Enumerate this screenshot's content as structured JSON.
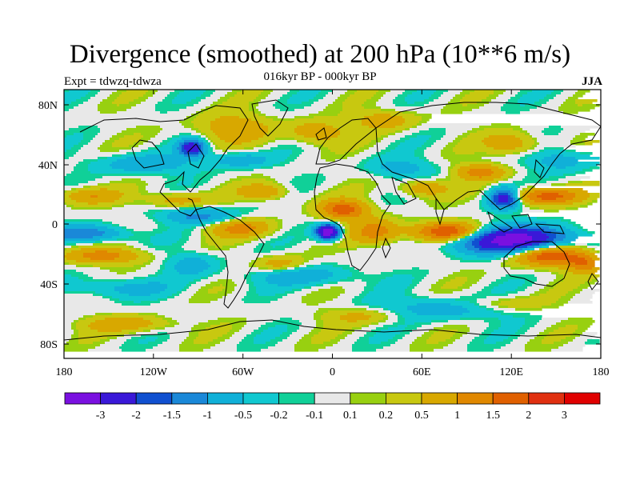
{
  "title": "Divergence (smoothed) at 200 hPa (10**6 m/s)",
  "subtitle": "016kyr BP - 000kyr BP",
  "left_label": "Expt = tdwzq-tdwza",
  "right_label": "JJA",
  "lon_ticks": [
    "180",
    "120W",
    "60W",
    "0",
    "60E",
    "120E",
    "180"
  ],
  "lat_ticks": [
    "80N",
    "40N",
    "0",
    "40S",
    "80S"
  ],
  "colorbar": {
    "colors": [
      "#7a10e0",
      "#3a18d8",
      "#1050d0",
      "#1a88d8",
      "#10b0d8",
      "#10c8d0",
      "#10d098",
      "#e8e8e8",
      "#98d010",
      "#c8c810",
      "#d8a800",
      "#e08800",
      "#e06000",
      "#e03010",
      "#e00000"
    ],
    "labels": [
      "-3",
      "-2",
      "-1.5",
      "-1",
      "-0.5",
      "-0.2",
      "-0.1",
      "0.1",
      "0.2",
      "0.5",
      "1",
      "1.5",
      "2",
      "3"
    ]
  }
}
